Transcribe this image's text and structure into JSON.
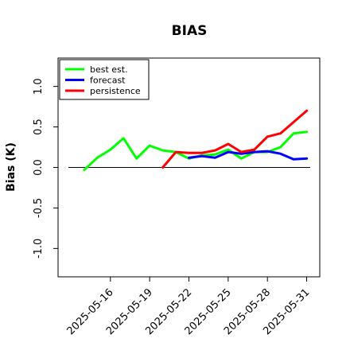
{
  "chart_data": {
    "type": "line",
    "title": "BIAS",
    "xlabel": "",
    "ylabel": "Bias (K)",
    "xlim": [
      "2025-05-12",
      "2025-06-01"
    ],
    "ylim": [
      -1.35,
      1.35
    ],
    "zero_line": true,
    "grid": false,
    "legend_position": "top-left",
    "x_ticks": [
      "2025-05-16",
      "2025-05-19",
      "2025-05-22",
      "2025-05-25",
      "2025-05-28",
      "2025-05-31"
    ],
    "highlight_tick": "2025-05-22",
    "highlight_color": "#228B22",
    "y_ticks": [
      -1.0,
      -0.5,
      0.0,
      0.5,
      1.0
    ],
    "y_tick_labels": [
      "-1.0",
      "-0.5",
      "0.0",
      "0.5",
      "1.0"
    ],
    "series": [
      {
        "name": "best est.",
        "color": "#00ff00",
        "x": [
          "2025-05-14",
          "2025-05-15",
          "2025-05-16",
          "2025-05-17",
          "2025-05-18",
          "2025-05-19",
          "2025-05-20",
          "2025-05-21",
          "2025-05-22",
          "2025-05-23",
          "2025-05-24",
          "2025-05-25",
          "2025-05-26",
          "2025-05-27",
          "2025-05-28",
          "2025-05-29",
          "2025-05-30",
          "2025-05-31"
        ],
        "values": [
          -0.03,
          0.12,
          0.22,
          0.36,
          0.11,
          0.27,
          0.21,
          0.19,
          0.11,
          0.15,
          0.16,
          0.22,
          0.11,
          0.19,
          0.19,
          0.25,
          0.42,
          0.44
        ]
      },
      {
        "name": "forecast",
        "color": "#0000ff",
        "x": [
          "2025-05-22",
          "2025-05-23",
          "2025-05-24",
          "2025-05-25",
          "2025-05-26",
          "2025-05-27",
          "2025-05-28",
          "2025-05-29",
          "2025-05-30",
          "2025-05-31"
        ],
        "values": [
          0.12,
          0.14,
          0.12,
          0.19,
          0.17,
          0.19,
          0.2,
          0.17,
          0.1,
          0.11
        ]
      },
      {
        "name": "persistence",
        "color": "#ff0000",
        "x": [
          "2025-05-20",
          "2025-05-21",
          "2025-05-22",
          "2025-05-23",
          "2025-05-24",
          "2025-05-25",
          "2025-05-26",
          "2025-05-27",
          "2025-05-28",
          "2025-05-29",
          "2025-05-30",
          "2025-05-31"
        ],
        "values": [
          0.0,
          0.19,
          0.18,
          0.18,
          0.21,
          0.29,
          0.19,
          0.22,
          0.38,
          0.42,
          0.56,
          0.7
        ]
      }
    ]
  }
}
